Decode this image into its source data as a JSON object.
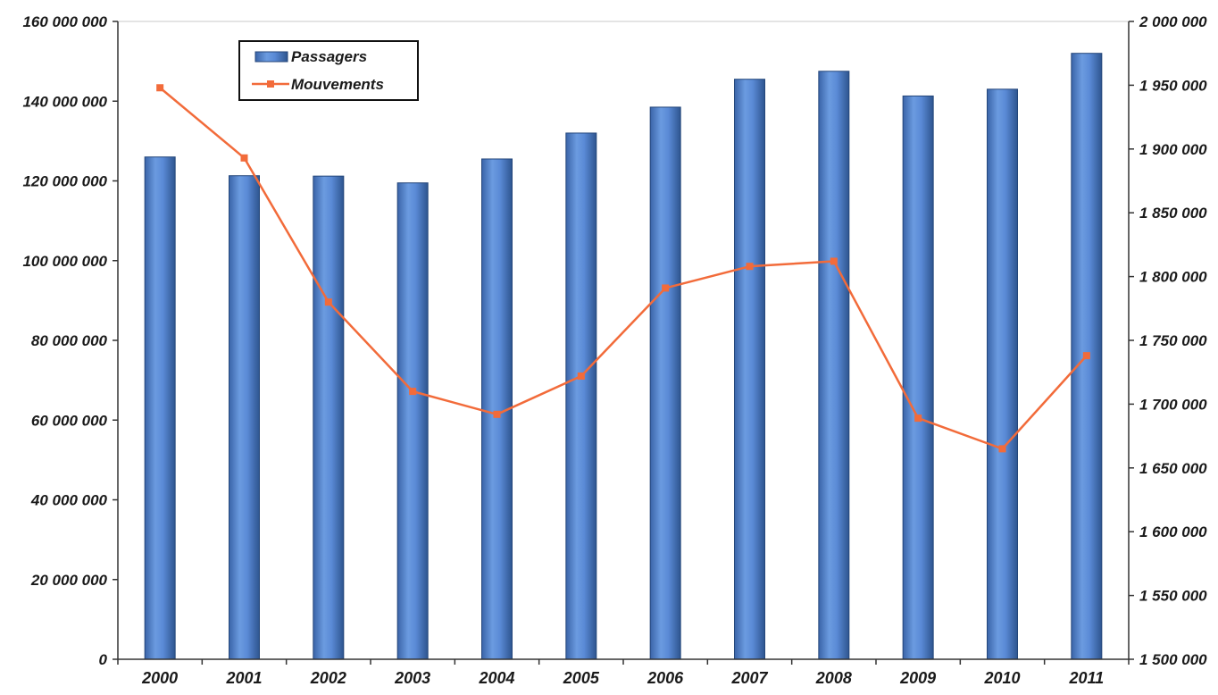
{
  "chart_data": {
    "type": "bar",
    "categories": [
      "2000",
      "2001",
      "2002",
      "2003",
      "2004",
      "2005",
      "2006",
      "2007",
      "2008",
      "2009",
      "2010",
      "2011"
    ],
    "series": [
      {
        "name": "Passagers",
        "kind": "bar",
        "axis": "left",
        "color": "#4f81c7",
        "values": [
          126000000,
          121300000,
          121200000,
          119500000,
          125500000,
          132000000,
          138500000,
          145500000,
          147500000,
          141300000,
          143000000,
          152000000
        ]
      },
      {
        "name": "Mouvements",
        "kind": "line",
        "axis": "right",
        "color": "#f26b3a",
        "values": [
          1948000,
          1893000,
          1780000,
          1710000,
          1692000,
          1722000,
          1791000,
          1808000,
          1812000,
          1689000,
          1665000,
          1738000
        ]
      }
    ],
    "y_left": {
      "range": [
        0,
        160000000
      ],
      "ticks": [
        0,
        20000000,
        40000000,
        60000000,
        80000000,
        100000000,
        120000000,
        140000000,
        160000000
      ],
      "tick_labels": [
        "0",
        "20 000 000",
        "40 000 000",
        "60 000 000",
        "80 000 000",
        "100 000 000",
        "120 000 000",
        "140 000 000",
        "160 000 000"
      ]
    },
    "y_right": {
      "range": [
        1500000,
        2000000
      ],
      "ticks": [
        1500000,
        1550000,
        1600000,
        1650000,
        1700000,
        1750000,
        1800000,
        1850000,
        1900000,
        1950000,
        2000000
      ],
      "tick_labels": [
        "1 500 000",
        "1 550 000",
        "1 600 000",
        "1 650 000",
        "1 700 000",
        "1 750 000",
        "1 800 000",
        "1 850 000",
        "1 900 000",
        "1 950 000",
        "2 000 000"
      ]
    },
    "legend_position": "top-left",
    "grid": false
  }
}
